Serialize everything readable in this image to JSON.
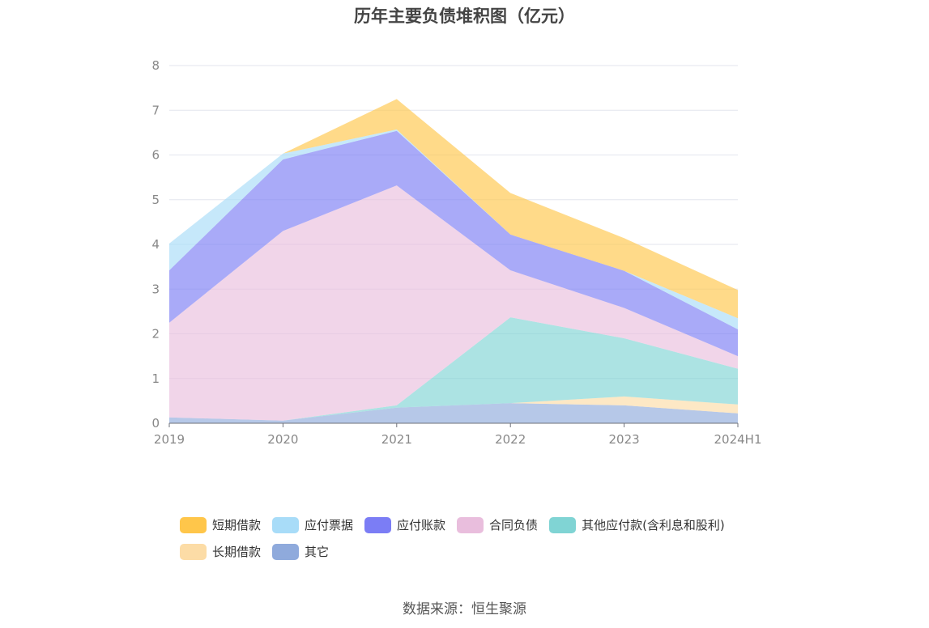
{
  "title": "历年主要负债堆积图（亿元）",
  "source": "数据来源：恒生聚源",
  "chart_data": {
    "type": "area",
    "stacked": true,
    "categories": [
      "2019",
      "2020",
      "2021",
      "2022",
      "2023",
      "2024H1"
    ],
    "ylim": [
      0,
      8
    ],
    "yticks": [
      "0",
      "1",
      "2",
      "3",
      "4",
      "5",
      "6",
      "7",
      "8"
    ],
    "grid": true,
    "legend_position": "bottom",
    "series": [
      {
        "name": "其它",
        "color": "#8faadc",
        "values": [
          0.13,
          0.06,
          0.35,
          0.45,
          0.4,
          0.22
        ]
      },
      {
        "name": "长期借款",
        "color": "#fcdca6",
        "values": [
          0.0,
          0.0,
          0.0,
          0.0,
          0.2,
          0.2
        ]
      },
      {
        "name": "其他应付款(含利息和股利)",
        "color": "#80d4d4",
        "values": [
          0.0,
          0.0,
          0.05,
          1.92,
          1.3,
          0.8
        ]
      },
      {
        "name": "合同负债",
        "color": "#e9bedd",
        "values": [
          2.12,
          4.24,
          4.92,
          1.05,
          0.68,
          0.28
        ]
      },
      {
        "name": "应付账款",
        "color": "#7b7df5",
        "values": [
          1.17,
          1.6,
          1.22,
          0.8,
          0.83,
          0.6
        ]
      },
      {
        "name": "应付票据",
        "color": "#a8dcf8",
        "values": [
          0.6,
          0.13,
          0.03,
          0.0,
          0.0,
          0.25
        ]
      },
      {
        "name": "短期借款",
        "color": "#ffc64a",
        "values": [
          0.0,
          0.0,
          0.68,
          0.93,
          0.73,
          0.63
        ]
      }
    ]
  },
  "legend": [
    {
      "label": "短期借款",
      "color": "#ffc64a"
    },
    {
      "label": "应付票据",
      "color": "#a8dcf8"
    },
    {
      "label": "应付账款",
      "color": "#7b7df5"
    },
    {
      "label": "合同负债",
      "color": "#e9bedd"
    },
    {
      "label": "其他应付款(含利息和股利)",
      "color": "#80d4d4"
    },
    {
      "label": "长期借款",
      "color": "#fcdca6"
    },
    {
      "label": "其它",
      "color": "#8faadc"
    }
  ]
}
